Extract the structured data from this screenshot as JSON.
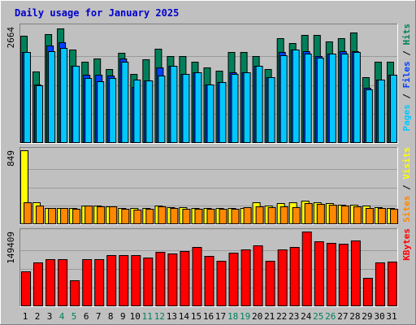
{
  "chart_data": {
    "type": "bar",
    "title": "Daily usage for January 2025",
    "categories": [
      "1",
      "2",
      "3",
      "4",
      "5",
      "6",
      "7",
      "8",
      "9",
      "10",
      "11",
      "12",
      "13",
      "14",
      "15",
      "16",
      "17",
      "18",
      "19",
      "20",
      "21",
      "22",
      "23",
      "24",
      "25",
      "26",
      "27",
      "28",
      "29",
      "30",
      "31"
    ],
    "weekend_days": [
      4,
      5,
      11,
      12,
      18,
      19,
      25,
      26
    ],
    "panels": [
      {
        "id": "top",
        "max_label": "2664",
        "ymax": 2664,
        "legend": [
          "Pages",
          "Files",
          "Hits"
        ],
        "series": [
          {
            "name": "Hits",
            "color": "#00805a",
            "values": [
              2454,
              1640,
              2500,
              2630,
              2140,
              1870,
              1940,
              1700,
              2070,
              1580,
              1910,
              2160,
              1990,
              2000,
              1870,
              1740,
              1660,
              2080,
              2080,
              2000,
              1700,
              2400,
              2300,
              2480,
              2480,
              2330,
              2400,
              2530,
              1510,
              1860,
              1860
            ]
          },
          {
            "name": "Files",
            "color": "#0040ff",
            "values": [
              2080,
              1340,
              2230,
              2310,
              1770,
              1570,
              1570,
              1540,
              1930,
              1280,
              1440,
              1740,
              1770,
              1580,
              1620,
              1350,
              1400,
              1630,
              1630,
              1770,
              1500,
              2080,
              2140,
              2110,
              2000,
              2040,
              2110,
              2100,
              1260,
              1460,
              1560
            ]
          },
          {
            "name": "Pages",
            "color": "#00c8ff",
            "values": [
              2080,
              1320,
              2100,
              2180,
              1770,
              1490,
              1410,
              1490,
              1860,
              1450,
              1440,
              1540,
              1770,
              1580,
              1620,
              1350,
              1400,
              1580,
              1620,
              1770,
              1500,
              2020,
              2140,
              2040,
              1960,
              2040,
              2040,
              2080,
              1230,
              1460,
              1560
            ]
          }
        ]
      },
      {
        "id": "mid",
        "max_label": "849",
        "ymax": 849,
        "legend": [
          "Sites",
          "Visits"
        ],
        "series": [
          {
            "name": "Visits",
            "color": "#ffff00",
            "values": [
              849,
              250,
              190,
              190,
              190,
              215,
              210,
              205,
              190,
              185,
              190,
              210,
              200,
              200,
              190,
              190,
              190,
              190,
              190,
              250,
              210,
              240,
              250,
              270,
              250,
              240,
              220,
              220,
              210,
              200,
              190
            ]
          },
          {
            "name": "Sites",
            "color": "#ff8800",
            "values": [
              250,
              210,
              185,
              185,
              180,
              215,
              205,
              205,
              180,
              170,
              180,
              205,
              185,
              180,
              175,
              180,
              180,
              180,
              200,
              205,
              200,
              205,
              200,
              240,
              230,
              220,
              210,
              205,
              190,
              190,
              180
            ]
          }
        ]
      },
      {
        "id": "bot",
        "max_label": "149409",
        "ymax": 149409,
        "legend": [
          "KBytes"
        ],
        "series": [
          {
            "name": "KBytes",
            "color": "#ff0000",
            "values": [
              70000,
              87000,
              95000,
              95000,
              52000,
              95000,
              95000,
              103000,
              102000,
              102000,
              98000,
              108000,
              105000,
              110000,
              119000,
              100000,
              91000,
              107000,
              113000,
              121000,
              91000,
              114000,
              119000,
              149409,
              130000,
              127000,
              125000,
              132000,
              57000,
              87000,
              89000
            ]
          }
        ]
      }
    ]
  }
}
